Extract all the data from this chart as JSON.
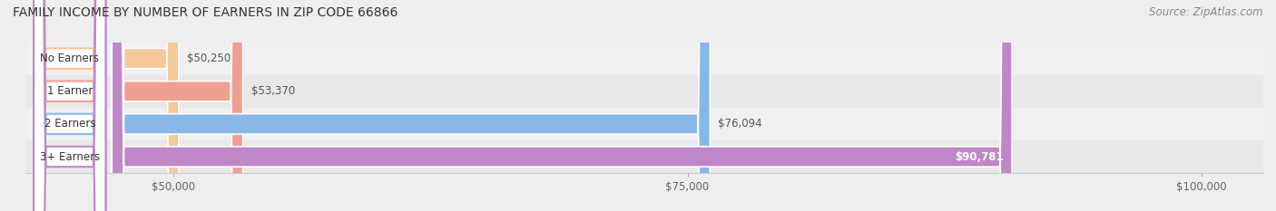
{
  "title": "FAMILY INCOME BY NUMBER OF EARNERS IN ZIP CODE 66866",
  "source": "Source: ZipAtlas.com",
  "categories": [
    "No Earners",
    "1 Earner",
    "2 Earners",
    "3+ Earners"
  ],
  "values": [
    50250,
    53370,
    76094,
    90781
  ],
  "bar_colors": [
    "#f5c99a",
    "#f0a090",
    "#87b8e8",
    "#c087c8"
  ],
  "label_colors": [
    "#555555",
    "#555555",
    "#555555",
    "#ffffff"
  ],
  "xmin": 47000,
  "xmax": 103000,
  "x_ticks": [
    50000,
    75000,
    100000
  ],
  "x_tick_labels": [
    "$50,000",
    "$75,000",
    "$100,000"
  ],
  "bar_height": 0.62,
  "title_fontsize": 10,
  "source_fontsize": 8.5,
  "tick_fontsize": 8.5,
  "label_fontsize": 8.5,
  "category_fontsize": 8.5
}
